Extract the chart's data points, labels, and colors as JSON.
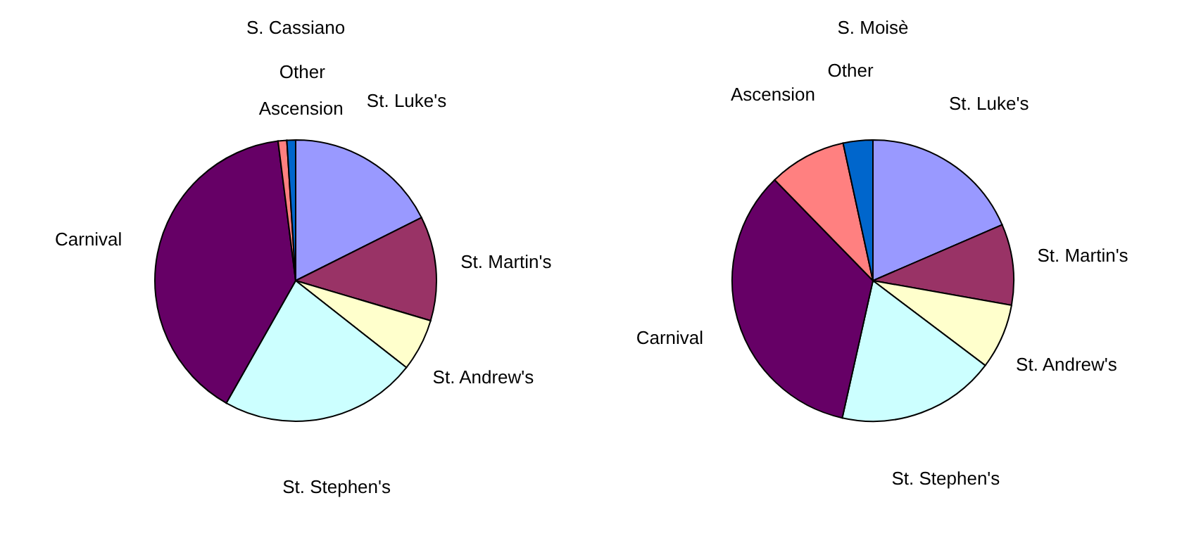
{
  "chart_data": [
    {
      "type": "pie",
      "title": "S. Cassiano",
      "categories": [
        "St. Luke's",
        "St. Martin's",
        "St. Andrew's",
        "St. Stephen's",
        "Carnival",
        "Ascension",
        "Other"
      ],
      "values": [
        17.6,
        12,
        6,
        22.6,
        39.8,
        1,
        1
      ],
      "colors": [
        "#9999ff",
        "#993366",
        "#ffffcc",
        "#ccffff",
        "#660066",
        "#ff8080",
        "#0066cc"
      ],
      "legend": false
    },
    {
      "type": "pie",
      "title": "S. Moisè",
      "categories": [
        "St. Luke's",
        "St. Martin's",
        "St. Andrew's",
        "St. Stephen's",
        "Carnival",
        "Ascension",
        "Other"
      ],
      "values": [
        18.5,
        9.3,
        7.5,
        18.2,
        34.2,
        8.9,
        3.4
      ],
      "colors": [
        "#9999ff",
        "#993366",
        "#ffffcc",
        "#ccffff",
        "#660066",
        "#ff8080",
        "#0066cc"
      ],
      "legend": false
    }
  ]
}
